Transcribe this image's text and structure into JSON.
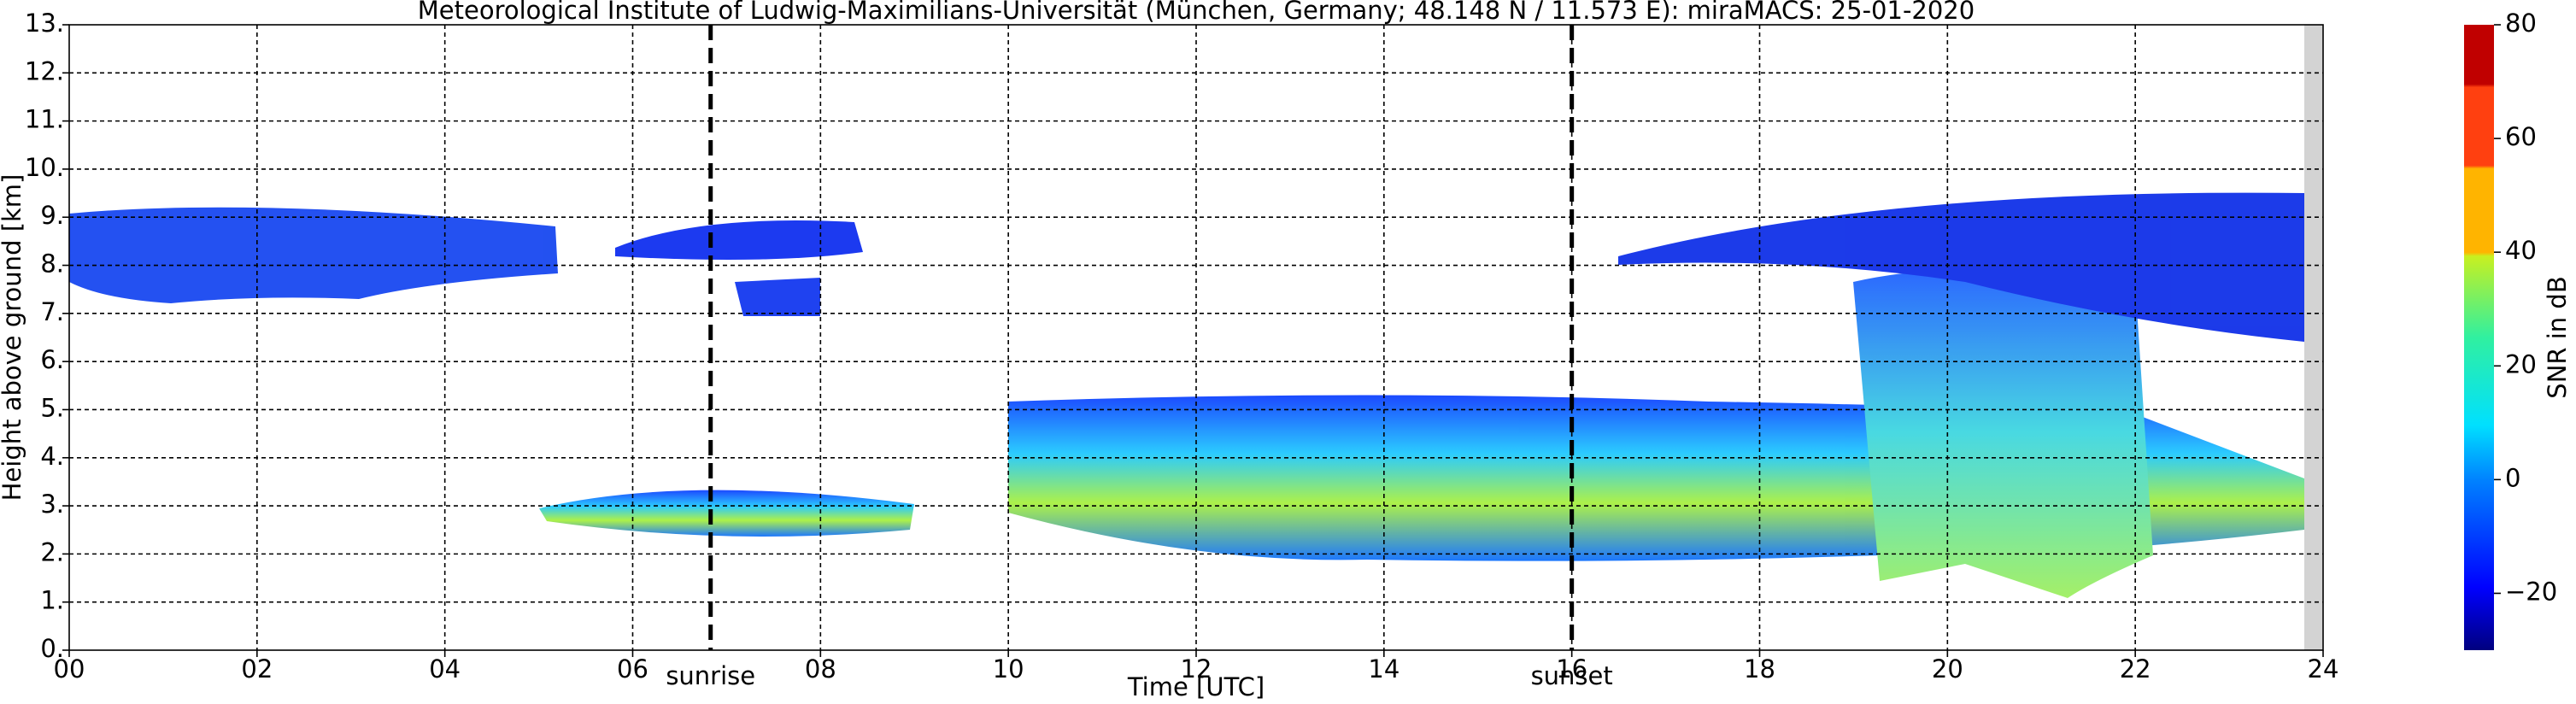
{
  "chart_data": {
    "type": "heatmap",
    "title": "Meteorological Institute of Ludwig-Maximilians-Universität (München, Germany; 48.148 N / 11.573 E):    miraMACS: 25-01-2020",
    "x_label": "Time [UTC]",
    "y_label": "Height above ground [km]",
    "xlim": [
      0,
      24
    ],
    "xticks": [
      {
        "value": 0,
        "label": "00"
      },
      {
        "value": 2,
        "label": "02"
      },
      {
        "value": 4,
        "label": "04"
      },
      {
        "value": 6,
        "label": "06"
      },
      {
        "value": 8,
        "label": "08"
      },
      10,
      12,
      14,
      16,
      18,
      20,
      22,
      24
    ],
    "ylim": [
      0,
      13
    ],
    "yticks": [
      {
        "value": 0,
        "label": "0."
      },
      {
        "value": 1,
        "label": "1."
      },
      {
        "value": 2,
        "label": "2."
      },
      {
        "value": 3,
        "label": "3."
      },
      {
        "value": 4,
        "label": "4."
      },
      {
        "value": 5,
        "label": "5."
      },
      {
        "value": 6,
        "label": "6."
      },
      {
        "value": 7,
        "label": "7."
      },
      {
        "value": 8,
        "label": "8."
      },
      {
        "value": 9,
        "label": "9."
      },
      {
        "value": 10,
        "label": "10."
      },
      {
        "value": 11,
        "label": "11."
      },
      {
        "value": 12,
        "label": "12."
      },
      {
        "value": 13,
        "label": "13."
      }
    ],
    "grid": true,
    "annotations": [
      {
        "text": "sunrise",
        "x": 6.83
      },
      {
        "text": "sunset",
        "x": 16.0
      }
    ],
    "colorbar": {
      "label": "SNR in dB",
      "lim": [
        -30,
        80
      ],
      "ticks": [
        {
          "value": -20,
          "label": "−20"
        },
        0,
        20,
        40,
        60,
        80
      ]
    }
  }
}
